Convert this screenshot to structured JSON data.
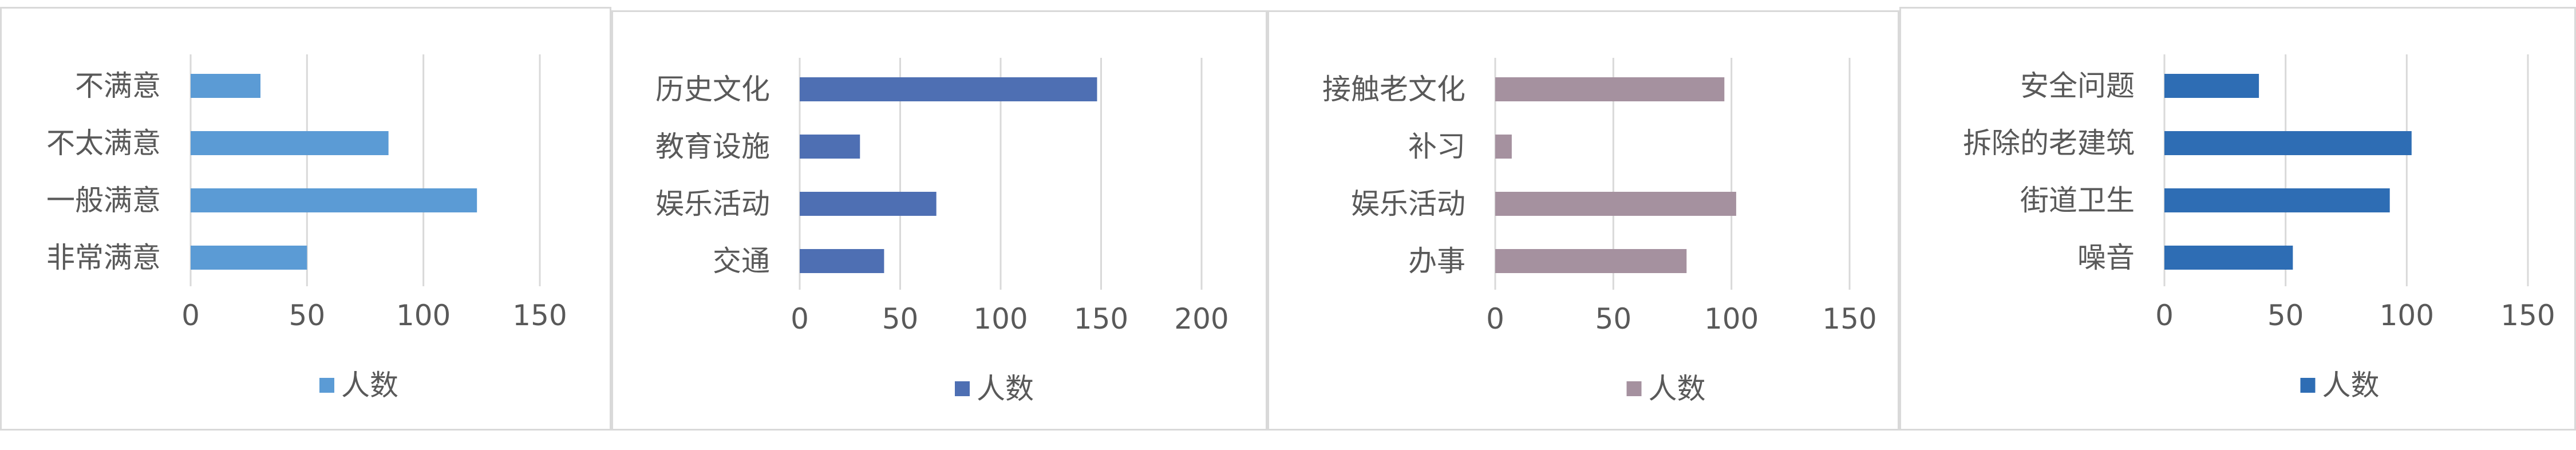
{
  "chart_data": [
    {
      "type": "bar",
      "orientation": "horizontal",
      "color": "#5b9bd5",
      "categories": [
        "不满意",
        "不太满意",
        "一般满意",
        "非常满意"
      ],
      "series": [
        {
          "name": "人数",
          "values": [
            30,
            85,
            123,
            50
          ]
        }
      ],
      "xlim": [
        0,
        150
      ],
      "xticks": [
        0,
        50,
        100,
        150
      ],
      "grid": true,
      "legend": "bottom"
    },
    {
      "type": "bar",
      "orientation": "horizontal",
      "color": "#4e6fb3",
      "categories": [
        "历史文化",
        "教育设施",
        "娱乐活动",
        "交通"
      ],
      "series": [
        {
          "name": "人数",
          "values": [
            148,
            30,
            68,
            42
          ]
        }
      ],
      "xlim": [
        0,
        200
      ],
      "xticks": [
        0,
        50,
        100,
        150,
        200
      ],
      "grid": true,
      "legend": "bottom"
    },
    {
      "type": "bar",
      "orientation": "horizontal",
      "color": "#a5919f",
      "categories": [
        "接触老文化",
        "补习",
        "娱乐活动",
        "办事"
      ],
      "series": [
        {
          "name": "人数",
          "values": [
            97,
            7,
            102,
            81
          ]
        }
      ],
      "xlim": [
        0,
        150
      ],
      "xticks": [
        0,
        50,
        100,
        150
      ],
      "grid": true,
      "legend": "bottom"
    },
    {
      "type": "bar",
      "orientation": "horizontal",
      "color": "#2e6db4",
      "categories": [
        "安全问题",
        "拆除的老建筑",
        "街道卫生",
        "噪音"
      ],
      "series": [
        {
          "name": "人数",
          "values": [
            39,
            102,
            93,
            53
          ]
        }
      ],
      "xlim": [
        0,
        150
      ],
      "xticks": [
        0,
        50,
        100,
        150
      ],
      "grid": true,
      "legend": "bottom"
    }
  ]
}
